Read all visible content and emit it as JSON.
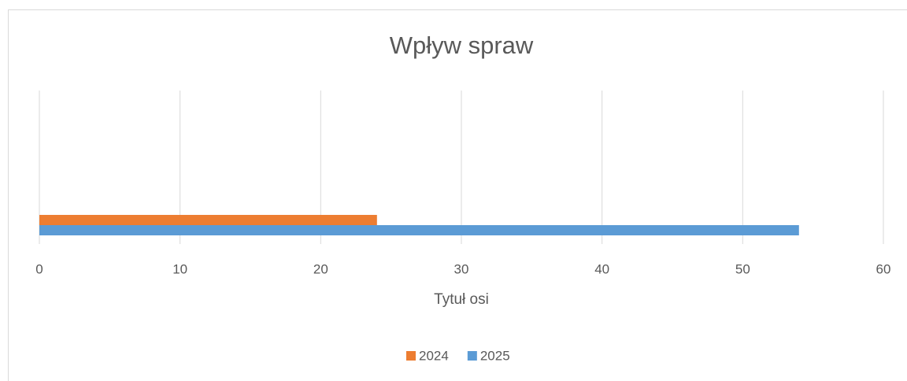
{
  "chart_data": {
    "type": "hbar",
    "title": "Wpływ spraw",
    "x_label": "Tytuł osi",
    "categories": [
      null
    ],
    "series": [
      {
        "name": "2024",
        "color": "#ed7d31",
        "values": [
          24
        ]
      },
      {
        "name": "2025",
        "color": "#5b9bd5",
        "values": [
          54
        ]
      }
    ],
    "xlim": [
      0,
      60
    ],
    "xticks": [
      0,
      10,
      20,
      30,
      40,
      50,
      60
    ],
    "grid": true,
    "legend": "bottom"
  }
}
